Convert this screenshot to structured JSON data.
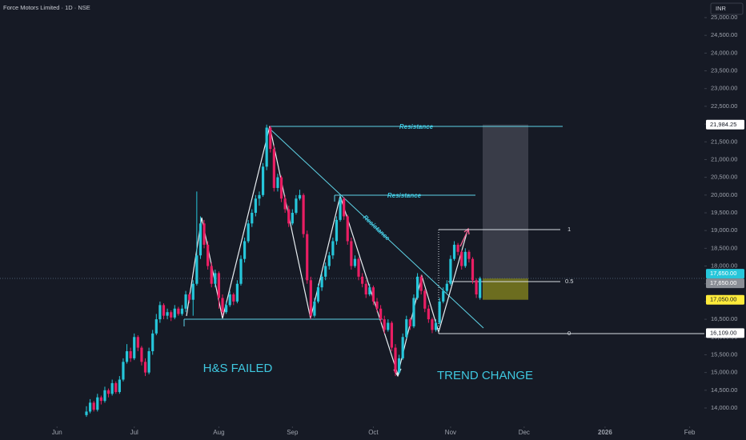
{
  "chart_data": {
    "type": "candlestick",
    "title": "Force Motors Limited · 1D · NSE",
    "currency": "INR",
    "up_color": "#26c6da",
    "down_color": "#e91e63",
    "xlim": [
      -23.5,
      168
    ],
    "xticks": [
      {
        "value": -8,
        "label": "Jun"
      },
      {
        "value": 13,
        "label": "Jul"
      },
      {
        "value": 36,
        "label": "Aug"
      },
      {
        "value": 56,
        "label": "Sep"
      },
      {
        "value": 78,
        "label": "Oct"
      },
      {
        "value": 99,
        "label": "Nov"
      },
      {
        "value": 119,
        "label": "Dec"
      },
      {
        "value": 141,
        "label": "2026"
      },
      {
        "value": 164,
        "label": "Feb"
      }
    ],
    "ylim": [
      14000,
      25000
    ],
    "yticks": [
      {
        "value": 14000,
        "label": "14,000.00"
      },
      {
        "value": 14500,
        "label": "14,500.00"
      },
      {
        "value": 15000,
        "label": "15,000.00"
      },
      {
        "value": 15500,
        "label": "15,500.00"
      },
      {
        "value": 16000,
        "label": "16,000.00"
      },
      {
        "value": 16500,
        "label": "16,500.00"
      },
      {
        "value": 17000,
        "label": "17,000.00"
      },
      {
        "value": 17500,
        "label": "17,500.00"
      },
      {
        "value": 18000,
        "label": "18,000.00"
      },
      {
        "value": 18500,
        "label": "18,500.00"
      },
      {
        "value": 19000,
        "label": "19,000.00"
      },
      {
        "value": 19500,
        "label": "19,500.00"
      },
      {
        "value": 20000,
        "label": "20,000.00"
      },
      {
        "value": 20500,
        "label": "20,500.00"
      },
      {
        "value": 21000,
        "label": "21,000.00"
      },
      {
        "value": 21500,
        "label": "21,500.00"
      },
      {
        "value": 22000,
        "label": "22,000.00"
      },
      {
        "value": 22500,
        "label": "22,500.00"
      },
      {
        "value": 23000,
        "label": "23,000.00"
      },
      {
        "value": 23500,
        "label": "23,500.00"
      },
      {
        "value": 24000,
        "label": "24,000.00"
      },
      {
        "value": 24500,
        "label": "24,500.00"
      },
      {
        "value": 25000,
        "label": "25,000.00"
      }
    ],
    "price_tags": [
      {
        "value": 21984.25,
        "label": "21,984.25",
        "color": "#ffffff"
      },
      {
        "value": 17650,
        "label": "17,650.00",
        "color": "#26c6da"
      },
      {
        "value": 17650,
        "label": "17,650.00",
        "color": "#8a8e96"
      },
      {
        "value": 17050,
        "label": "17,050.00",
        "color": "#ffeb3b"
      },
      {
        "value": 16109,
        "label": "16,109.00",
        "color": "#ffffff"
      }
    ],
    "annotations": [
      "Resistance",
      "Resistance",
      "Resistance",
      "H&S FAILED",
      "TREND CHANGE"
    ],
    "fib_levels": [
      1,
      0.5,
      0
    ],
    "ohlc": [
      [
        13800,
        14050,
        13750,
        13900
      ],
      [
        13900,
        14250,
        13850,
        14150
      ],
      [
        14150,
        14200,
        13900,
        13950
      ],
      [
        13950,
        14400,
        13900,
        14300
      ],
      [
        14300,
        14350,
        14100,
        14200
      ],
      [
        14200,
        14600,
        14150,
        14500
      ],
      [
        14500,
        14550,
        14300,
        14400
      ],
      [
        14400,
        14800,
        14350,
        14700
      ],
      [
        14700,
        14750,
        14400,
        14450
      ],
      [
        14450,
        14900,
        14400,
        14800
      ],
      [
        14800,
        15400,
        14750,
        15300
      ],
      [
        15300,
        15800,
        15250,
        15600
      ],
      [
        15600,
        15700,
        15300,
        15400
      ],
      [
        15400,
        16100,
        15350,
        16000
      ],
      [
        16000,
        16050,
        15600,
        15700
      ],
      [
        15700,
        15750,
        15200,
        15300
      ],
      [
        15300,
        15400,
        14900,
        15000
      ],
      [
        15000,
        15700,
        14950,
        15600
      ],
      [
        15600,
        16200,
        15500,
        16100
      ],
      [
        16100,
        16650,
        16050,
        16500
      ],
      [
        16500,
        17000,
        16400,
        16900
      ],
      [
        16900,
        16950,
        16500,
        16600
      ],
      [
        16600,
        16800,
        16500,
        16700
      ],
      [
        16700,
        16750,
        16450,
        16550
      ],
      [
        16550,
        16900,
        16500,
        16800
      ],
      [
        16800,
        16850,
        16600,
        16650
      ],
      [
        16650,
        16900,
        16600,
        16800
      ],
      [
        16800,
        17300,
        16700,
        17200
      ],
      [
        17200,
        17250,
        16950,
        17050
      ],
      [
        17050,
        17600,
        16600,
        17500
      ],
      [
        17500,
        20100,
        17450,
        18300
      ],
      [
        18300,
        19400,
        18200,
        19200
      ],
      [
        19200,
        19300,
        18500,
        18600
      ],
      [
        18600,
        18700,
        17900,
        18000
      ],
      [
        18000,
        18100,
        17400,
        17500
      ],
      [
        17500,
        17900,
        17400,
        17800
      ],
      [
        17800,
        17850,
        16800,
        17100
      ],
      [
        17100,
        17200,
        16600,
        16700
      ],
      [
        16700,
        17000,
        16650,
        16900
      ],
      [
        16900,
        17300,
        16850,
        17200
      ],
      [
        17200,
        17250,
        16900,
        17000
      ],
      [
        17000,
        17600,
        16950,
        17500
      ],
      [
        17500,
        18300,
        17450,
        18200
      ],
      [
        18200,
        18800,
        18100,
        18700
      ],
      [
        18700,
        19300,
        18650,
        19200
      ],
      [
        19200,
        19600,
        19100,
        19500
      ],
      [
        19500,
        20000,
        19400,
        19900
      ],
      [
        19900,
        20100,
        19700,
        20000
      ],
      [
        20000,
        20900,
        19950,
        20800
      ],
      [
        20800,
        21984,
        20700,
        21900
      ],
      [
        21900,
        21950,
        21200,
        21300
      ],
      [
        21300,
        21400,
        20100,
        20200
      ],
      [
        20200,
        20600,
        20100,
        20500
      ],
      [
        20500,
        20550,
        19800,
        19900
      ],
      [
        19900,
        20000,
        19500,
        19600
      ],
      [
        19600,
        19700,
        19100,
        19200
      ],
      [
        19200,
        19600,
        19150,
        19500
      ],
      [
        19500,
        20000,
        19450,
        19900
      ],
      [
        19900,
        20150,
        19850,
        20000
      ],
      [
        20000,
        20050,
        18800,
        18900
      ],
      [
        18900,
        19000,
        17500,
        17600
      ],
      [
        17600,
        17700,
        16500,
        16600
      ],
      [
        16600,
        17100,
        16550,
        17000
      ],
      [
        17000,
        17500,
        16950,
        17400
      ],
      [
        17400,
        17800,
        17300,
        17700
      ],
      [
        17700,
        18100,
        17600,
        18000
      ],
      [
        18000,
        18400,
        17900,
        18300
      ],
      [
        18300,
        18800,
        18200,
        18700
      ],
      [
        18700,
        19400,
        18600,
        19300
      ],
      [
        19300,
        20000,
        19250,
        19900
      ],
      [
        19900,
        19950,
        19300,
        19400
      ],
      [
        19400,
        19450,
        18600,
        18700
      ],
      [
        18700,
        18800,
        17900,
        18000
      ],
      [
        18000,
        18300,
        17950,
        18200
      ],
      [
        18200,
        18250,
        17600,
        17700
      ],
      [
        17700,
        17800,
        17400,
        17500
      ],
      [
        17500,
        17600,
        17100,
        17200
      ],
      [
        17200,
        17500,
        17150,
        17400
      ],
      [
        17400,
        17450,
        16900,
        17000
      ],
      [
        17000,
        17100,
        16700,
        16800
      ],
      [
        16800,
        16900,
        16400,
        16500
      ],
      [
        16500,
        16600,
        16100,
        16200
      ],
      [
        16200,
        16500,
        16150,
        16400
      ],
      [
        16400,
        16450,
        15600,
        15700
      ],
      [
        15700,
        15800,
        14900,
        15000
      ],
      [
        15000,
        15500,
        14950,
        15400
      ],
      [
        15400,
        16100,
        15350,
        16000
      ],
      [
        16000,
        16600,
        15950,
        16500
      ],
      [
        16500,
        16550,
        16200,
        16300
      ],
      [
        16300,
        17200,
        16250,
        17100
      ],
      [
        17100,
        17800,
        17050,
        17700
      ],
      [
        17700,
        17750,
        17200,
        17300
      ],
      [
        17300,
        17350,
        16700,
        16800
      ],
      [
        16800,
        16900,
        16400,
        16500
      ],
      [
        16500,
        16550,
        16109,
        16200
      ],
      [
        16200,
        16500,
        16150,
        16400
      ],
      [
        16400,
        17100,
        16350,
        17000
      ],
      [
        17000,
        17400,
        16950,
        17300
      ],
      [
        17300,
        17600,
        17250,
        17500
      ],
      [
        17500,
        18300,
        17450,
        18200
      ],
      [
        18200,
        18700,
        18150,
        18600
      ],
      [
        18600,
        18650,
        18300,
        18400
      ],
      [
        18400,
        18450,
        17900,
        18000
      ],
      [
        18000,
        18500,
        17950,
        18400
      ],
      [
        18400,
        18450,
        18100,
        18200
      ],
      [
        18200,
        18250,
        17500,
        17600
      ],
      [
        17600,
        17650,
        17100,
        17200
      ],
      [
        17100,
        17700,
        17050,
        17650
      ]
    ]
  }
}
